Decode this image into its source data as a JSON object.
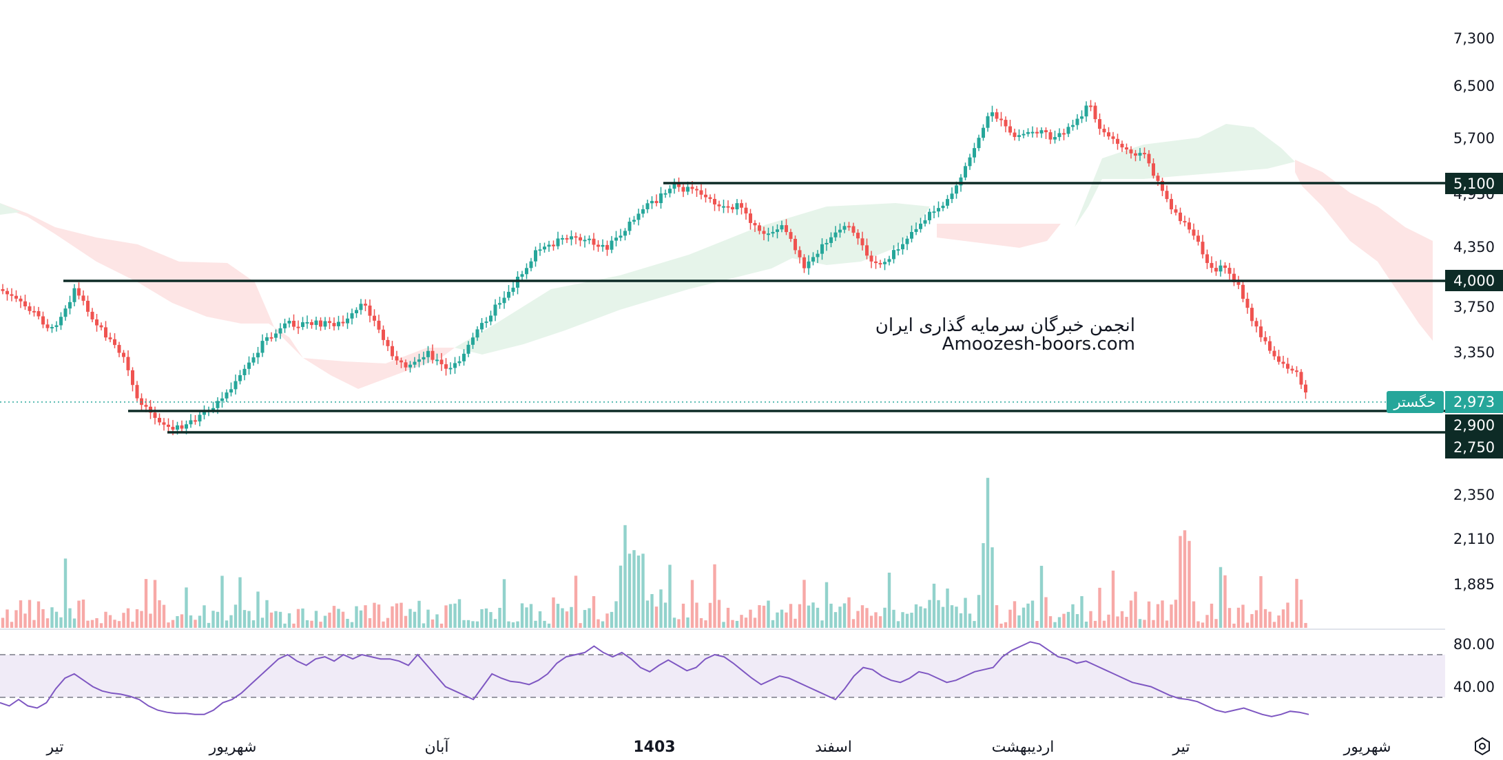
{
  "chart_data": [
    {
      "type": "candlestick",
      "symbol": "خگستر",
      "last_price": "2,973",
      "watermark": [
        "انجمن خبرگان سرمایه گذاری ایران",
        "Amoozesh-boors.com"
      ],
      "price_axis_ticks": [
        "7,300",
        "6,500",
        "5,700",
        "4,950",
        "4,350",
        "3,750",
        "3,350",
        "2,350",
        "2,110",
        "1,885"
      ],
      "horizontal_levels": [
        {
          "label": "5,100",
          "value": 5100
        },
        {
          "label": "4,000",
          "value": 4000
        },
        {
          "label": "2,900",
          "value": 2900
        },
        {
          "label": "2,750",
          "value": 2750
        }
      ],
      "x_axis_labels": [
        "تیر",
        "شهریور",
        "آبان",
        "1403",
        "اسفند",
        "اردیبهشت",
        "تیر",
        "شهریور"
      ],
      "x_axis_bold": "1403",
      "indicators": [
        "Ichimoku cloud",
        "Volume"
      ],
      "colors": {
        "up": "#26a69a",
        "down": "#ef5350",
        "level": "#0d2b26",
        "cloud_up": "#e6f4ea",
        "cloud_down": "#fde5e5"
      }
    },
    {
      "type": "line",
      "name": "RSI",
      "y_ticks": [
        "80.00",
        "40.00"
      ],
      "band": [
        30,
        70
      ],
      "color": "#7e57c2",
      "values": [
        25,
        22,
        28,
        22,
        20,
        25,
        38,
        48,
        52,
        46,
        40,
        36,
        34,
        33,
        31,
        28,
        22,
        18,
        16,
        15,
        15,
        14,
        14,
        18,
        25,
        28,
        34,
        42,
        50,
        58,
        66,
        70,
        64,
        60,
        66,
        68,
        64,
        70,
        66,
        70,
        68,
        66,
        66,
        64,
        60,
        70,
        60,
        50,
        40,
        36,
        32,
        28,
        40,
        52,
        48,
        45,
        44,
        42,
        46,
        52,
        62,
        68,
        70,
        72,
        78,
        72,
        68,
        72,
        66,
        58,
        54,
        60,
        65,
        60,
        55,
        58,
        66,
        70,
        68,
        62,
        55,
        48,
        42,
        46,
        50,
        48,
        44,
        40,
        36,
        32,
        28,
        38,
        50,
        58,
        56,
        50,
        46,
        44,
        48,
        54,
        52,
        48,
        44,
        46,
        50,
        54,
        56,
        58,
        68,
        74,
        78,
        82,
        80,
        74,
        68,
        66,
        62,
        64,
        60,
        56,
        52,
        48,
        44,
        42,
        40,
        36,
        32,
        29,
        28,
        26,
        22,
        18,
        16,
        18,
        20,
        17,
        14,
        12,
        14,
        17,
        16,
        14
      ]
    }
  ]
}
